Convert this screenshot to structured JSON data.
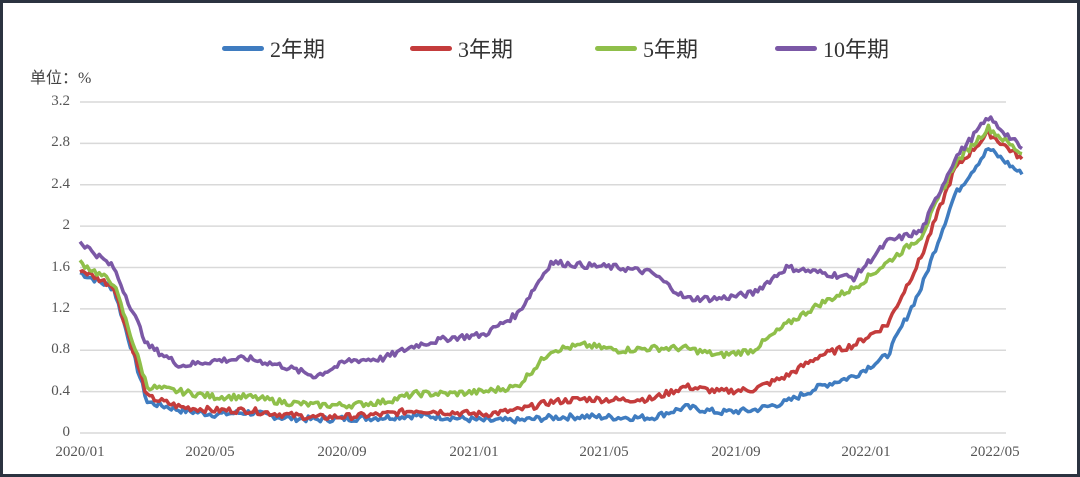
{
  "chart_data": {
    "type": "line",
    "title": "",
    "ylabel": "单位：%",
    "xlabel": "",
    "ylim": [
      0,
      3.2
    ],
    "yticks": [
      "0",
      "0.4",
      "0.8",
      "1.2",
      "1.6",
      "2",
      "2.4",
      "2.8",
      "3.2"
    ],
    "xticks": [
      "2020/01",
      "2020/05",
      "2020/09",
      "2021/01",
      "2021/05",
      "2021/09",
      "2022/01",
      "2022/05"
    ],
    "grid": true,
    "legend_position": "top",
    "x": [
      "2020/01",
      "2020/02",
      "2020/03",
      "2020/04",
      "2020/05",
      "2020/06",
      "2020/07",
      "2020/08",
      "2020/09",
      "2020/10",
      "2020/11",
      "2020/12",
      "2021/01",
      "2021/02",
      "2021/03",
      "2021/04",
      "2021/05",
      "2021/06",
      "2021/07",
      "2021/08",
      "2021/09",
      "2021/10",
      "2021/11",
      "2021/12",
      "2022/01",
      "2022/02",
      "2022/03",
      "2022/04",
      "2022/05"
    ],
    "series": [
      {
        "name": "2年期",
        "color": "#3f7cc0",
        "values": [
          1.55,
          1.4,
          0.3,
          0.22,
          0.18,
          0.2,
          0.15,
          0.13,
          0.14,
          0.15,
          0.17,
          0.15,
          0.12,
          0.12,
          0.15,
          0.16,
          0.15,
          0.15,
          0.25,
          0.2,
          0.22,
          0.3,
          0.45,
          0.55,
          0.75,
          1.4,
          2.3,
          2.75,
          2.5
        ]
      },
      {
        "name": "3年期",
        "color": "#c43c3c",
        "values": [
          1.58,
          1.42,
          0.35,
          0.25,
          0.22,
          0.22,
          0.18,
          0.15,
          0.16,
          0.18,
          0.22,
          0.2,
          0.18,
          0.22,
          0.3,
          0.33,
          0.32,
          0.33,
          0.45,
          0.4,
          0.42,
          0.55,
          0.75,
          0.85,
          1.05,
          1.7,
          2.55,
          2.9,
          2.65
        ]
      },
      {
        "name": "5年期",
        "color": "#8fbf4a",
        "values": [
          1.65,
          1.45,
          0.45,
          0.4,
          0.35,
          0.35,
          0.3,
          0.27,
          0.27,
          0.3,
          0.38,
          0.38,
          0.4,
          0.45,
          0.8,
          0.85,
          0.8,
          0.82,
          0.82,
          0.75,
          0.8,
          1.05,
          1.25,
          1.4,
          1.65,
          1.9,
          2.6,
          2.95,
          2.7
        ]
      },
      {
        "name": "10年期",
        "color": "#7b58a6",
        "values": [
          1.85,
          1.6,
          0.85,
          0.65,
          0.7,
          0.72,
          0.65,
          0.55,
          0.7,
          0.72,
          0.85,
          0.92,
          0.95,
          1.15,
          1.65,
          1.62,
          1.6,
          1.55,
          1.3,
          1.3,
          1.35,
          1.6,
          1.55,
          1.5,
          1.85,
          1.95,
          2.65,
          3.05,
          2.75
        ]
      }
    ]
  },
  "legend": {
    "items": [
      {
        "label": "2年期",
        "color": "#3f7cc0"
      },
      {
        "label": "3年期",
        "color": "#c43c3c"
      },
      {
        "label": "5年期",
        "color": "#8fbf4a"
      },
      {
        "label": "10年期",
        "color": "#7b58a6"
      }
    ]
  },
  "axis": {
    "unit_label": "单位：%"
  }
}
